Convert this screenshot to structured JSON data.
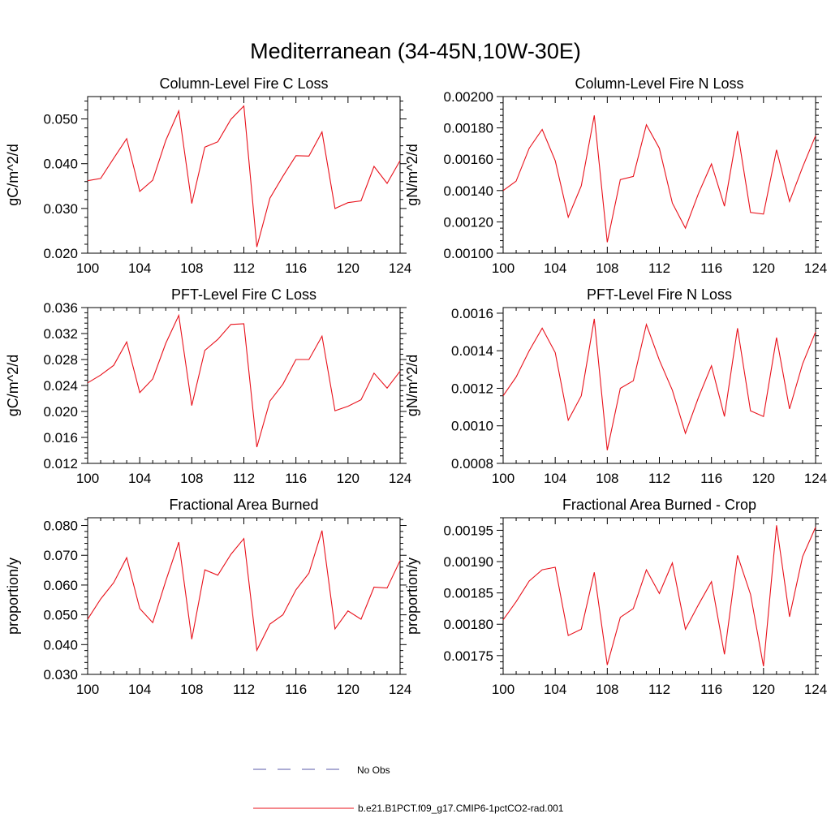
{
  "figure": {
    "title": "Mediterranean (34-45N,10W-30E)",
    "legend": {
      "entries": [
        {
          "label": "No Obs",
          "color": "#5a5aa8",
          "style": "dashed"
        },
        {
          "label": "b.e21.B1PCT.f09_g17.CMIP6-1pctCO2-rad.001",
          "color": "#e8101a",
          "style": "solid"
        }
      ]
    }
  },
  "chart_data": [
    {
      "type": "line",
      "title": "Column-Level Fire C Loss",
      "ylabel": "gC/m^2/d",
      "xlim": [
        100,
        124
      ],
      "xticks": [
        100,
        104,
        108,
        112,
        116,
        120,
        124
      ],
      "ylim": [
        0.02,
        0.055
      ],
      "yticks": [
        0.02,
        0.03,
        0.04,
        0.05
      ],
      "ytick_labels": [
        "0.020",
        "0.030",
        "0.040",
        "0.050"
      ],
      "x": [
        100,
        101,
        102,
        103,
        104,
        105,
        106,
        107,
        108,
        109,
        110,
        111,
        112,
        113,
        114,
        115,
        116,
        117,
        118,
        119,
        120,
        121,
        122,
        123,
        124
      ],
      "series": [
        {
          "name": "b.e21.B1PCT.f09_g17.CMIP6-1pctCO2-rad.001",
          "values": [
            0.0362,
            0.0367,
            0.0412,
            0.0456,
            0.0338,
            0.0363,
            0.0452,
            0.0518,
            0.0311,
            0.0437,
            0.0449,
            0.0499,
            0.0529,
            0.0214,
            0.0323,
            0.0372,
            0.0418,
            0.0417,
            0.0471,
            0.03,
            0.0313,
            0.0317,
            0.0394,
            0.0356,
            0.0407
          ]
        }
      ]
    },
    {
      "type": "line",
      "title": "Column-Level Fire N Loss",
      "ylabel": "gN/m^2/d",
      "xlim": [
        100,
        124
      ],
      "xticks": [
        100,
        104,
        108,
        112,
        116,
        120,
        124
      ],
      "ylim": [
        0.001,
        0.002
      ],
      "yticks": [
        0.001,
        0.0012,
        0.0014,
        0.0016,
        0.0018,
        0.002
      ],
      "ytick_labels": [
        "0.00100",
        "0.00120",
        "0.00140",
        "0.00160",
        "0.00180",
        "0.00200"
      ],
      "x": [
        100,
        101,
        102,
        103,
        104,
        105,
        106,
        107,
        108,
        109,
        110,
        111,
        112,
        113,
        114,
        115,
        116,
        117,
        118,
        119,
        120,
        121,
        122,
        123,
        124
      ],
      "series": [
        {
          "name": "b.e21.B1PCT.f09_g17.CMIP6-1pctCO2-rad.001",
          "values": [
            0.0014,
            0.00146,
            0.00167,
            0.00179,
            0.00159,
            0.00123,
            0.00143,
            0.00188,
            0.00107,
            0.00147,
            0.00149,
            0.00182,
            0.00167,
            0.00132,
            0.00116,
            0.00138,
            0.00157,
            0.0013,
            0.00178,
            0.00126,
            0.00125,
            0.00166,
            0.00133,
            0.00155,
            0.00175
          ]
        }
      ]
    },
    {
      "type": "line",
      "title": "PFT-Level Fire C Loss",
      "ylabel": "gC/m^2/d",
      "xlim": [
        100,
        124
      ],
      "xticks": [
        100,
        104,
        108,
        112,
        116,
        120,
        124
      ],
      "ylim": [
        0.012,
        0.036
      ],
      "yticks": [
        0.012,
        0.016,
        0.02,
        0.024,
        0.028,
        0.032,
        0.036
      ],
      "ytick_labels": [
        "0.012",
        "0.016",
        "0.020",
        "0.024",
        "0.028",
        "0.032",
        "0.036"
      ],
      "x": [
        100,
        101,
        102,
        103,
        104,
        105,
        106,
        107,
        108,
        109,
        110,
        111,
        112,
        113,
        114,
        115,
        116,
        117,
        118,
        119,
        120,
        121,
        122,
        123,
        124
      ],
      "series": [
        {
          "name": "b.e21.B1PCT.f09_g17.CMIP6-1pctCO2-rad.001",
          "values": [
            0.0244,
            0.0256,
            0.0271,
            0.0307,
            0.0229,
            0.025,
            0.0305,
            0.0348,
            0.0209,
            0.0294,
            0.0311,
            0.0334,
            0.0335,
            0.0145,
            0.0216,
            0.0242,
            0.028,
            0.028,
            0.0316,
            0.0201,
            0.0208,
            0.0218,
            0.0259,
            0.0236,
            0.0262
          ]
        }
      ]
    },
    {
      "type": "line",
      "title": "PFT-Level Fire N Loss",
      "ylabel": "gN/m^2/d",
      "xlim": [
        100,
        124
      ],
      "xticks": [
        100,
        104,
        108,
        112,
        116,
        120,
        124
      ],
      "ylim": [
        0.0008,
        0.00163
      ],
      "yticks": [
        0.0008,
        0.001,
        0.0012,
        0.0014,
        0.0016
      ],
      "ytick_labels": [
        "0.0008",
        "0.0010",
        "0.0012",
        "0.0014",
        "0.0016"
      ],
      "x": [
        100,
        101,
        102,
        103,
        104,
        105,
        106,
        107,
        108,
        109,
        110,
        111,
        112,
        113,
        114,
        115,
        116,
        117,
        118,
        119,
        120,
        121,
        122,
        123,
        124
      ],
      "series": [
        {
          "name": "b.e21.B1PCT.f09_g17.CMIP6-1pctCO2-rad.001",
          "values": [
            0.00116,
            0.00126,
            0.0014,
            0.00152,
            0.00139,
            0.00103,
            0.00116,
            0.00157,
            0.00087,
            0.0012,
            0.00124,
            0.00154,
            0.00135,
            0.00119,
            0.00096,
            0.00115,
            0.00132,
            0.00105,
            0.00152,
            0.00108,
            0.00105,
            0.00147,
            0.00109,
            0.00133,
            0.0015
          ]
        }
      ]
    },
    {
      "type": "line",
      "title": "Fractional Area Burned",
      "ylabel": "proportion/y",
      "xlim": [
        100,
        124
      ],
      "xticks": [
        100,
        104,
        108,
        112,
        116,
        120,
        124
      ],
      "ylim": [
        0.03,
        0.0826
      ],
      "yticks": [
        0.03,
        0.04,
        0.05,
        0.06,
        0.07,
        0.08
      ],
      "ytick_labels": [
        "0.030",
        "0.040",
        "0.050",
        "0.060",
        "0.070",
        "0.080"
      ],
      "x": [
        100,
        101,
        102,
        103,
        104,
        105,
        106,
        107,
        108,
        109,
        110,
        111,
        112,
        113,
        114,
        115,
        116,
        117,
        118,
        119,
        120,
        121,
        122,
        123,
        124
      ],
      "series": [
        {
          "name": "b.e21.B1PCT.f09_g17.CMIP6-1pctCO2-rad.001",
          "values": [
            0.0485,
            0.0553,
            0.0608,
            0.0692,
            0.0521,
            0.0474,
            0.0614,
            0.0744,
            0.0418,
            0.0651,
            0.0633,
            0.0703,
            0.0756,
            0.0381,
            0.0469,
            0.05,
            0.0584,
            0.064,
            0.0783,
            0.0453,
            0.0513,
            0.0485,
            0.0593,
            0.059,
            0.0682
          ]
        }
      ]
    },
    {
      "type": "line",
      "title": "Fractional Area Burned - Crop",
      "ylabel": "proportion/y",
      "xlim": [
        100,
        124
      ],
      "xticks": [
        100,
        104,
        108,
        112,
        116,
        120,
        124
      ],
      "ylim": [
        0.00172,
        0.00197
      ],
      "yticks": [
        0.00175,
        0.0018,
        0.00185,
        0.0019,
        0.00195
      ],
      "ytick_labels": [
        "0.00175",
        "0.00180",
        "0.00185",
        "0.00190",
        "0.00195"
      ],
      "x": [
        100,
        101,
        102,
        103,
        104,
        105,
        106,
        107,
        108,
        109,
        110,
        111,
        112,
        113,
        114,
        115,
        116,
        117,
        118,
        119,
        120,
        121,
        122,
        123,
        124
      ],
      "series": [
        {
          "name": "b.e21.B1PCT.f09_g17.CMIP6-1pctCO2-rad.001",
          "values": [
            0.001807,
            0.001836,
            0.001869,
            0.001887,
            0.001891,
            0.001782,
            0.001792,
            0.001883,
            0.001735,
            0.001811,
            0.001825,
            0.001887,
            0.001849,
            0.001898,
            0.001792,
            0.001831,
            0.001868,
            0.001752,
            0.00191,
            0.001848,
            0.001733,
            0.001958,
            0.001812,
            0.001908,
            0.001955
          ]
        }
      ]
    }
  ]
}
